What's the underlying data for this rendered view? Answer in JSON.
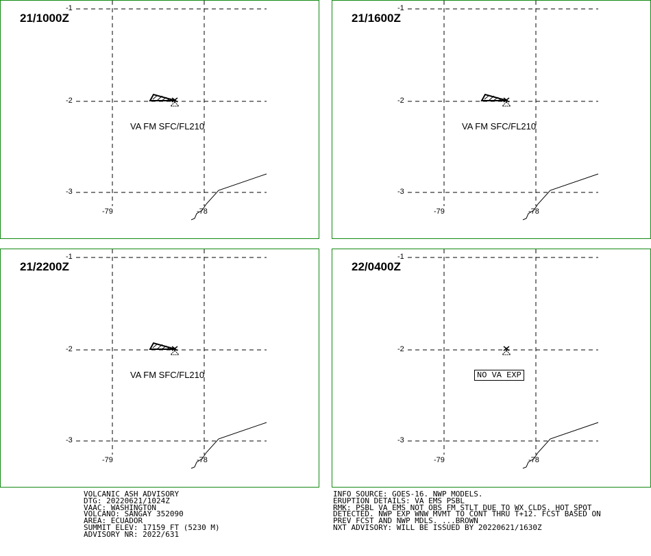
{
  "panels": [
    {
      "title": "21/1000Z",
      "label": "VA FM SFC/FL210",
      "ash": true
    },
    {
      "title": "21/1600Z",
      "label": "VA FM SFC/FL210",
      "ash": true
    },
    {
      "title": "21/2200Z",
      "label": "VA FM SFC/FL210",
      "ash": true
    },
    {
      "title": "22/0400Z",
      "label": "NO VA EXP",
      "ash": false
    }
  ],
  "axes": {
    "lat_labels": [
      "-1",
      "-2",
      "-3"
    ],
    "lon_labels": [
      "-79",
      "-78"
    ]
  },
  "advisory": {
    "left": [
      "VOLCANIC ASH ADVISORY",
      "DTG: 20220621/1024Z",
      "VAAC: WASHINGTON",
      "VOLCANO: SANGAY 352090",
      "AREA: ECUADOR",
      "SUMMIT ELEV: 17159 FT (5230 M)",
      "ADVISORY NR: 2022/631"
    ],
    "right": [
      "INFO SOURCE: GOES-16. NWP MODELS.",
      "ERUPTION DETAILS: VA EMS PSBL",
      "RMK: PSBL VA EMS NOT OBS FM STLT DUE TO WX CLDS. HOT SPOT",
      "DETECTED. NWP EXP WNW MVMT TO CONT THRU T+12. FCST BASED ON",
      "PREV FCST AND NWP MDLS. ...BROWN",
      "NXT ADVISORY: WILL BE ISSUED BY 20220621/1630Z"
    ]
  },
  "colors": {
    "frame": "#118811",
    "lines": "#000000"
  }
}
